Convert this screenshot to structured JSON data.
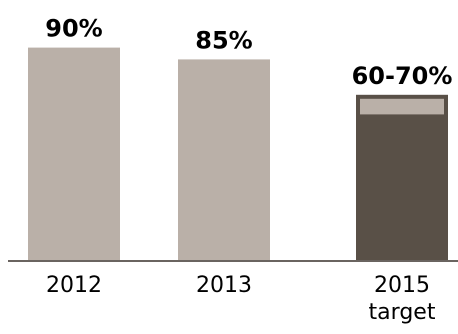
{
  "chart_data": {
    "type": "bar",
    "categories": [
      "2012",
      "2013",
      "2015 target"
    ],
    "category_label_lines": [
      [
        "2012"
      ],
      [
        "2013"
      ],
      [
        "2015",
        "target"
      ]
    ],
    "values": [
      90,
      85,
      70
    ],
    "target_range": {
      "category": "2015 target",
      "low": 60,
      "high": 70
    },
    "data_labels": [
      "90%",
      "85%",
      "60-70%"
    ],
    "ylim": [
      0,
      100
    ],
    "grid": false,
    "colors": {
      "actual": "#bab0a8",
      "target_fill": "#595047",
      "target_band": "#bab0a8",
      "baseline": "#6a6460"
    }
  }
}
